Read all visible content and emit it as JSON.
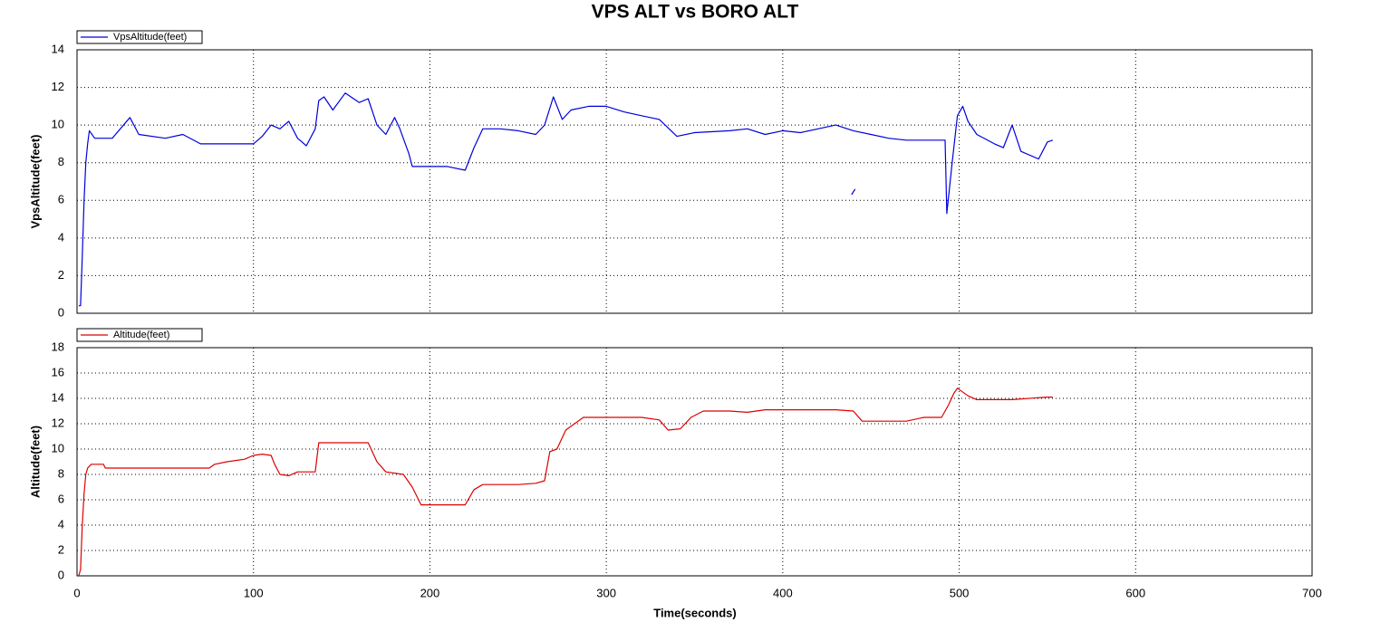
{
  "chart_data": [
    {
      "type": "line",
      "title": "VPS ALT vs BORO ALT",
      "ylabel": "VpsAltitude(feet)",
      "xlim": [
        0,
        700
      ],
      "ylim": [
        0,
        14
      ],
      "yticks": [
        0,
        2,
        4,
        6,
        8,
        10,
        12,
        14
      ],
      "grid": true,
      "legend": "top-left",
      "x": [
        1,
        2,
        3,
        4,
        5,
        6,
        7,
        10,
        20,
        30,
        35,
        50,
        60,
        70,
        90,
        100,
        105,
        110,
        115,
        120,
        125,
        130,
        135,
        137,
        140,
        145,
        152,
        160,
        165,
        170,
        175,
        180,
        183,
        188,
        190,
        200,
        210,
        220,
        225,
        230,
        240,
        250,
        260,
        265,
        270,
        275,
        280,
        290,
        300,
        310,
        320,
        330,
        340,
        350,
        370,
        380,
        390,
        400,
        410,
        420,
        430,
        440,
        450,
        460,
        470,
        490,
        492,
        493,
        496,
        499,
        502,
        505,
        510,
        520,
        525,
        530,
        535,
        545,
        550,
        553,
        null,
        439,
        441
      ],
      "series": [
        {
          "name": "VpsAltitude(feet)",
          "color": "#0000dd",
          "values": [
            0.4,
            0.4,
            3,
            6,
            8,
            9,
            9.7,
            9.3,
            9.3,
            10.4,
            9.5,
            9.3,
            9.5,
            9,
            9,
            9,
            9.4,
            10,
            9.8,
            10.2,
            9.3,
            8.9,
            9.8,
            11.3,
            11.5,
            10.8,
            11.7,
            11.2,
            11.4,
            10,
            9.5,
            10.4,
            9.8,
            8.5,
            7.8,
            7.8,
            7.8,
            7.6,
            8.8,
            9.8,
            9.8,
            9.7,
            9.5,
            10,
            11.5,
            10.3,
            10.8,
            11,
            11,
            10.7,
            10.5,
            10.3,
            9.4,
            9.6,
            9.7,
            9.8,
            9.5,
            9.7,
            9.6,
            9.8,
            10,
            9.7,
            9.5,
            9.3,
            9.2,
            9.2,
            9.2,
            5.3,
            8,
            10.5,
            11,
            10.2,
            9.5,
            9,
            8.8,
            10,
            8.6,
            8.2,
            9.1,
            9.2,
            null,
            6.3,
            6.6
          ]
        }
      ]
    },
    {
      "type": "line",
      "ylabel": "Altitude(feet)",
      "xlabel": "Time(seconds)",
      "xlim": [
        0,
        700
      ],
      "xticks": [
        0,
        100,
        200,
        300,
        400,
        500,
        600,
        700
      ],
      "ylim": [
        0,
        18
      ],
      "yticks": [
        0,
        2,
        4,
        6,
        8,
        10,
        12,
        14,
        16,
        18
      ],
      "grid": true,
      "legend": "top-left",
      "x": [
        1,
        2,
        3,
        4,
        5,
        6,
        8,
        15,
        16,
        30,
        60,
        75,
        78,
        85,
        95,
        100,
        105,
        110,
        112,
        115,
        120,
        125,
        135,
        137,
        150,
        165,
        170,
        175,
        185,
        190,
        195,
        210,
        220,
        225,
        230,
        250,
        260,
        265,
        268,
        272,
        277,
        282,
        287,
        300,
        320,
        330,
        335,
        342,
        348,
        355,
        370,
        380,
        390,
        410,
        430,
        440,
        445,
        470,
        480,
        490,
        494,
        497,
        499,
        505,
        510,
        530,
        550,
        553
      ],
      "series": [
        {
          "name": "Altitude(feet)",
          "color": "#dd0000",
          "values": [
            0,
            0.5,
            4,
            6.5,
            8,
            8.5,
            8.8,
            8.8,
            8.5,
            8.5,
            8.5,
            8.5,
            8.8,
            9,
            9.2,
            9.5,
            9.6,
            9.5,
            8.8,
            8,
            7.9,
            8.2,
            8.2,
            10.5,
            10.5,
            10.5,
            9,
            8.2,
            8,
            7,
            5.6,
            5.6,
            5.6,
            6.8,
            7.2,
            7.2,
            7.3,
            7.5,
            9.8,
            10,
            11.5,
            12,
            12.5,
            12.5,
            12.5,
            12.3,
            11.5,
            11.6,
            12.5,
            13,
            13,
            12.9,
            13.1,
            13.1,
            13.1,
            13,
            12.2,
            12.2,
            12.5,
            12.5,
            13.5,
            14.4,
            14.8,
            14.2,
            13.9,
            13.9,
            14.1,
            14.1
          ]
        }
      ]
    }
  ]
}
